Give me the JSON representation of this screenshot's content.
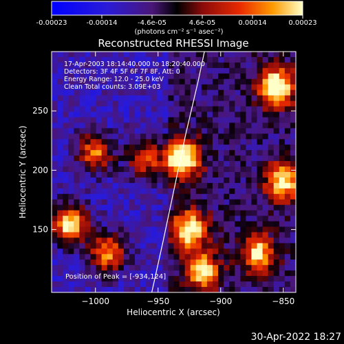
{
  "colorbar": {
    "ticks": [
      "-0.00023",
      "-0.00014",
      "-4.6e-05",
      "4.6e-05",
      "0.00014",
      "0.00023"
    ],
    "unit_label": "(photons cm⁻² s⁻¹ asec⁻²)",
    "range": [
      -0.00023,
      0.00023
    ]
  },
  "chart_data": {
    "type": "heatmap",
    "title": "Reconstructed RHESSI Image",
    "xlabel": "Heliocentric X (arcsec)",
    "ylabel": "Heliocentric Y (arcsec)",
    "xlim": [
      -1035,
      -840
    ],
    "ylim": [
      97,
      300
    ],
    "xticks": [
      -1000,
      -950,
      -900,
      -850
    ],
    "yticks": [
      150,
      200,
      250
    ],
    "xtick_labels": [
      "−1000",
      "−950",
      "−900",
      "−850"
    ],
    "ytick_labels": [
      "150",
      "200",
      "250"
    ],
    "info_lines": [
      "17-Apr-2003 18:14:40.000 to 18:20:40.000",
      "Detectors: 3F 4F 5F 6F 7F 8F, Att: 0",
      "Energy Range: 12.0 - 25.0 keV",
      "Clean     Total counts: 3.09E+03"
    ],
    "peak_label": "Position of Peak = [-934,124]",
    "peak": [
      -934,
      124
    ],
    "limb_curve": [
      [
        -955,
        97
      ],
      [
        -946,
        140
      ],
      [
        -937,
        185
      ],
      [
        -928,
        230
      ],
      [
        -918,
        275
      ],
      [
        -913,
        300
      ]
    ],
    "bright_regions": [
      {
        "x": -855,
        "y": 270,
        "v": 1.0
      },
      {
        "x": -930,
        "y": 210,
        "v": 1.0
      },
      {
        "x": -925,
        "y": 150,
        "v": 0.9
      },
      {
        "x": -1020,
        "y": 155,
        "v": 0.95
      },
      {
        "x": -990,
        "y": 130,
        "v": 0.75
      },
      {
        "x": -1000,
        "y": 215,
        "v": 0.7
      },
      {
        "x": -915,
        "y": 115,
        "v": 0.8
      },
      {
        "x": -850,
        "y": 190,
        "v": 0.85
      },
      {
        "x": -870,
        "y": 130,
        "v": 0.75
      },
      {
        "x": -960,
        "y": 210,
        "v": 0.6
      }
    ]
  },
  "footer": {
    "timestamp": "30-Apr-2022 18:27"
  }
}
